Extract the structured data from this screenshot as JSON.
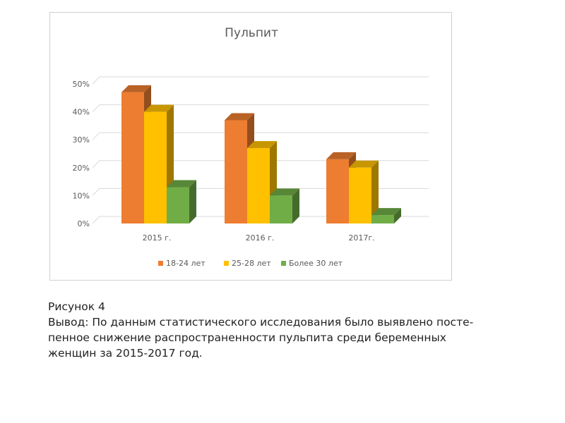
{
  "chart_data": {
    "type": "bar",
    "title": "Пульпит",
    "categories": [
      "2015 г.",
      "2016 г.",
      "2017г."
    ],
    "series": [
      {
        "name": "18-24 лет",
        "color": "#ed7d31",
        "values": [
          47,
          37,
          23
        ]
      },
      {
        "name": "25-28 лет",
        "color": "#ffc000",
        "values": [
          40,
          27,
          20
        ]
      },
      {
        "name": "Более 30 лет",
        "color": "#70ad47",
        "values": [
          13,
          10,
          3
        ]
      }
    ],
    "yticks": [
      "0%",
      "10%",
      "20%",
      "30%",
      "40%",
      "50%"
    ],
    "ylim": [
      0,
      50
    ],
    "grid": true,
    "legend_position": "bottom",
    "style": "3d-column"
  },
  "caption": {
    "figure_label": "Рисунок 4",
    "lines": [
      "Вывод: По данным статистического исследования было выявлено посте-",
      "пенное снижение распространенности пульпита среди беременных",
      "женщин за 2015-2017 год."
    ]
  }
}
